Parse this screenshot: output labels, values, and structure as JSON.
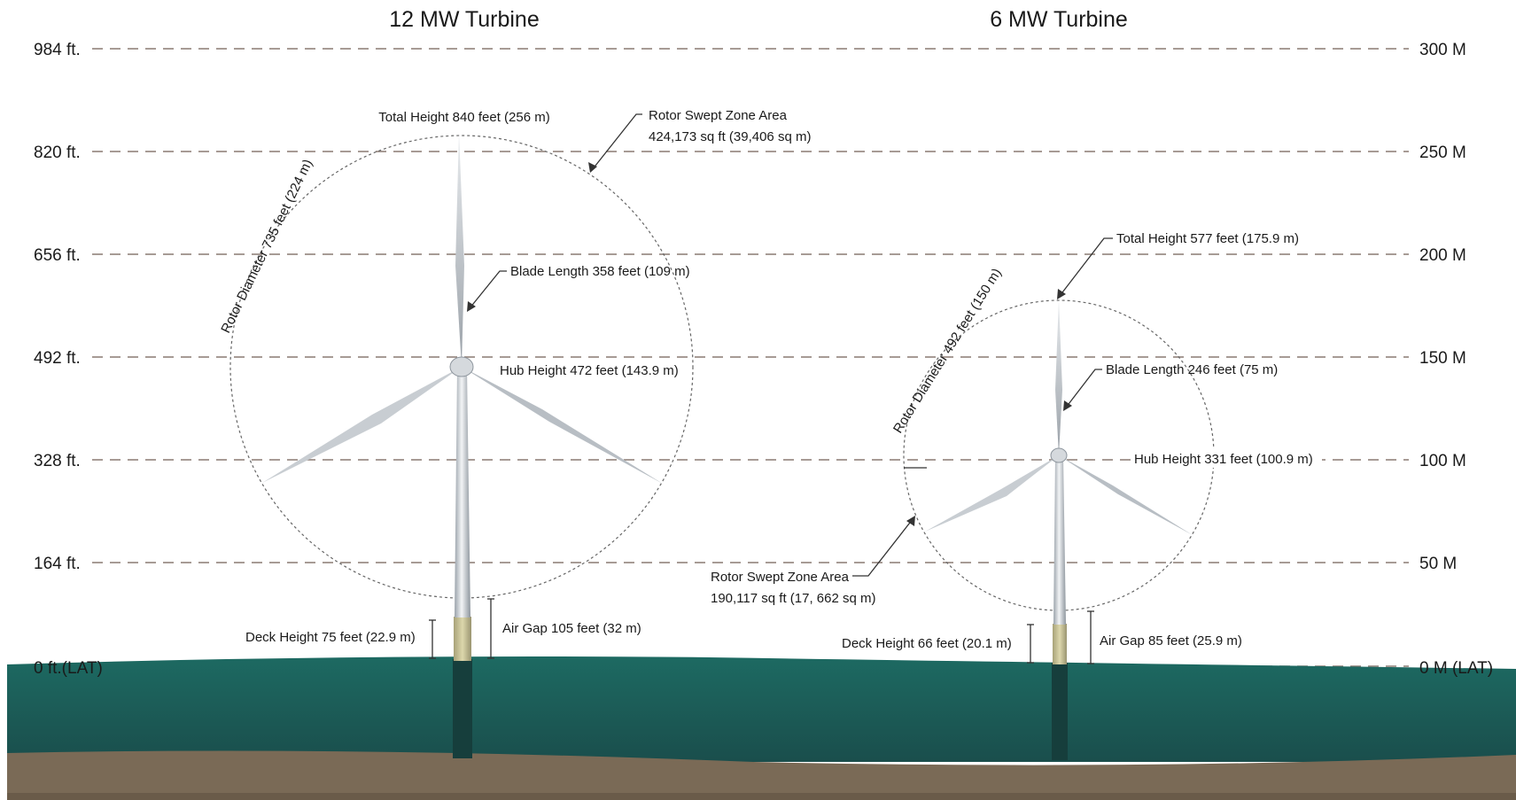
{
  "titles": {
    "left": "12 MW Turbine",
    "right": "6 MW Turbine"
  },
  "axis_left": [
    "984 ft.",
    "820 ft.",
    "656 ft.",
    "492 ft.",
    "328 ft.",
    "164 ft.",
    "0 ft.(LAT)"
  ],
  "axis_right": [
    "300 M",
    "250 M",
    "200 M",
    "150 M",
    "100 M",
    "50 M",
    "0 M (LAT)"
  ],
  "t12": {
    "total_height": "Total Height 840 feet (256 m)",
    "swept_1": "Rotor Swept Zone Area",
    "swept_2": "424,173 sq ft (39,406 sq m)",
    "rotor_diameter": "Rotor Diameter 735 feet (224 m)",
    "blade_length": "Blade Length 358 feet (109 m)",
    "hub_height": "Hub Height 472 feet (143.9 m)",
    "deck_height": "Deck Height 75 feet (22.9 m)",
    "air_gap": "Air Gap 105 feet (32 m)"
  },
  "t6": {
    "total_height": "Total Height 577 feet (175.9 m)",
    "rotor_diameter": "Rotor Diameter 492 feet (150 m)",
    "blade_length": "Blade Length 246 feet (75 m)",
    "hub_height": "Hub Height 331 feet (100.9 m)",
    "swept_1": "Rotor Swept Zone Area",
    "swept_2": "190,117 sq ft (17, 662 sq m)",
    "deck_height": "Deck Height 66 feet (20.1 m)",
    "air_gap": "Air Gap 85 feet (25.9 m)"
  },
  "colors": {
    "grid": "#8a7a72",
    "sea": "#1e5d58",
    "seabed": "#7a6a56",
    "tower": "#e2e6ea",
    "transition": "#c9c39a"
  }
}
